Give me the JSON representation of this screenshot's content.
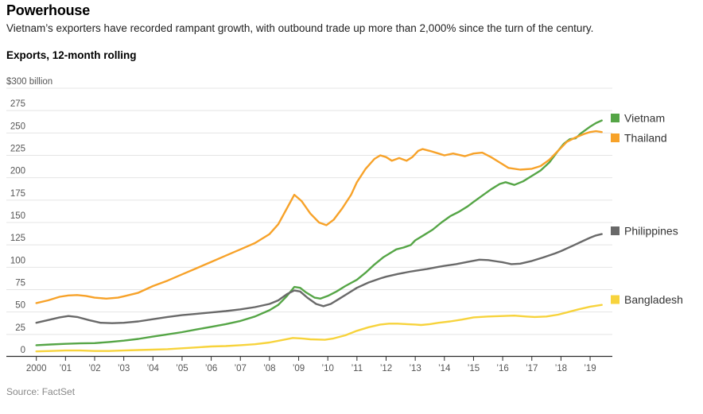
{
  "header": {
    "title": "Powerhouse",
    "subtitle": "Vietnam’s exporters have recorded rampant growth, with outbound trade up more than 2,000% since the turn of the century.",
    "chart_label": "Exports, 12-month rolling"
  },
  "source": "Source: FactSet",
  "chart_data": {
    "type": "line",
    "title": "Exports, 12-month rolling",
    "ylabel": "$300 billion",
    "ylim": [
      0,
      300
    ],
    "grid": true,
    "legend_position": "right",
    "y_ticks": [
      0,
      25,
      50,
      75,
      100,
      125,
      150,
      175,
      200,
      225,
      250,
      275,
      300
    ],
    "y_tick_labels": [
      "0",
      "25",
      "50",
      "75",
      "100",
      "125",
      "150",
      "175",
      "200",
      "225",
      "250",
      "275",
      "$300 billion"
    ],
    "x_ticks": [
      2000,
      2001,
      2002,
      2003,
      2004,
      2005,
      2006,
      2007,
      2008,
      2009,
      2010,
      2011,
      2012,
      2013,
      2014,
      2015,
      2016,
      2017,
      2018,
      2019
    ],
    "x_tick_labels": [
      "2000",
      "’01",
      "’02",
      "’03",
      "’04",
      "’05",
      "’06",
      "’07",
      "’08",
      "’09",
      "’10",
      "’11",
      "’12",
      "’13",
      "’14",
      "’15",
      "’16",
      "’17",
      "’18",
      "’19"
    ],
    "x_range": [
      2000,
      2019.75
    ],
    "series": [
      {
        "name": "Vietnam",
        "color": "#55A546",
        "points": [
          [
            2000,
            13
          ],
          [
            2000.5,
            13.8
          ],
          [
            2001,
            14.5
          ],
          [
            2001.5,
            15
          ],
          [
            2002,
            15.3
          ],
          [
            2002.5,
            16.5
          ],
          [
            2003,
            18
          ],
          [
            2003.5,
            20
          ],
          [
            2004,
            22.5
          ],
          [
            2004.5,
            25
          ],
          [
            2005,
            27.5
          ],
          [
            2005.5,
            30.5
          ],
          [
            2006,
            33.5
          ],
          [
            2006.5,
            36.5
          ],
          [
            2007,
            40
          ],
          [
            2007.5,
            45
          ],
          [
            2008,
            52
          ],
          [
            2008.3,
            58
          ],
          [
            2008.6,
            68
          ],
          [
            2008.85,
            78
          ],
          [
            2009.05,
            77
          ],
          [
            2009.25,
            72
          ],
          [
            2009.55,
            66
          ],
          [
            2009.75,
            65
          ],
          [
            2010,
            68
          ],
          [
            2010.3,
            73
          ],
          [
            2010.6,
            79
          ],
          [
            2011,
            86
          ],
          [
            2011.3,
            94
          ],
          [
            2011.6,
            103
          ],
          [
            2011.9,
            111
          ],
          [
            2012.1,
            115
          ],
          [
            2012.35,
            120
          ],
          [
            2012.6,
            122
          ],
          [
            2012.85,
            125
          ],
          [
            2013,
            130
          ],
          [
            2013.3,
            136
          ],
          [
            2013.6,
            142
          ],
          [
            2013.9,
            150
          ],
          [
            2014.2,
            157
          ],
          [
            2014.5,
            162
          ],
          [
            2014.8,
            168
          ],
          [
            2015,
            173
          ],
          [
            2015.3,
            180
          ],
          [
            2015.6,
            187
          ],
          [
            2015.9,
            193
          ],
          [
            2016.1,
            195
          ],
          [
            2016.4,
            192
          ],
          [
            2016.7,
            196
          ],
          [
            2017,
            202
          ],
          [
            2017.3,
            208
          ],
          [
            2017.6,
            217
          ],
          [
            2017.9,
            230
          ],
          [
            2018.1,
            238
          ],
          [
            2018.3,
            243
          ],
          [
            2018.5,
            244
          ],
          [
            2018.7,
            250
          ],
          [
            2019,
            257
          ],
          [
            2019.2,
            261
          ],
          [
            2019.4,
            264
          ]
        ]
      },
      {
        "name": "Thailand",
        "color": "#F7A229",
        "points": [
          [
            2000,
            60
          ],
          [
            2000.4,
            63
          ],
          [
            2000.8,
            67
          ],
          [
            2001.1,
            68.5
          ],
          [
            2001.4,
            69
          ],
          [
            2001.7,
            68
          ],
          [
            2002,
            66
          ],
          [
            2002.4,
            65
          ],
          [
            2002.8,
            66
          ],
          [
            2003,
            67.5
          ],
          [
            2003.5,
            71.5
          ],
          [
            2004,
            79
          ],
          [
            2004.5,
            85
          ],
          [
            2005,
            92
          ],
          [
            2005.5,
            99
          ],
          [
            2006,
            106
          ],
          [
            2006.5,
            113
          ],
          [
            2007,
            120
          ],
          [
            2007.5,
            127
          ],
          [
            2008,
            137
          ],
          [
            2008.3,
            148
          ],
          [
            2008.6,
            166
          ],
          [
            2008.85,
            181
          ],
          [
            2009.1,
            174
          ],
          [
            2009.4,
            160
          ],
          [
            2009.7,
            150
          ],
          [
            2009.95,
            147
          ],
          [
            2010.2,
            153
          ],
          [
            2010.5,
            166
          ],
          [
            2010.8,
            181
          ],
          [
            2011,
            195
          ],
          [
            2011.3,
            210
          ],
          [
            2011.6,
            221
          ],
          [
            2011.8,
            225
          ],
          [
            2012,
            223
          ],
          [
            2012.2,
            219
          ],
          [
            2012.45,
            222
          ],
          [
            2012.7,
            219
          ],
          [
            2012.9,
            223
          ],
          [
            2013.1,
            230
          ],
          [
            2013.25,
            232
          ],
          [
            2013.5,
            230
          ],
          [
            2013.8,
            227
          ],
          [
            2014,
            225
          ],
          [
            2014.3,
            227
          ],
          [
            2014.7,
            224
          ],
          [
            2015,
            227
          ],
          [
            2015.3,
            228
          ],
          [
            2015.6,
            223
          ],
          [
            2015.9,
            217
          ],
          [
            2016.2,
            211
          ],
          [
            2016.6,
            209
          ],
          [
            2017,
            210
          ],
          [
            2017.3,
            213
          ],
          [
            2017.6,
            220
          ],
          [
            2017.9,
            230
          ],
          [
            2018.2,
            240
          ],
          [
            2018.5,
            245
          ],
          [
            2018.8,
            249
          ],
          [
            2019,
            251
          ],
          [
            2019.2,
            252
          ],
          [
            2019.4,
            251
          ]
        ]
      },
      {
        "name": "Philippines",
        "color": "#696969",
        "points": [
          [
            2000,
            38
          ],
          [
            2000.4,
            41
          ],
          [
            2000.8,
            44
          ],
          [
            2001.1,
            45.5
          ],
          [
            2001.4,
            44.5
          ],
          [
            2001.8,
            41
          ],
          [
            2002.2,
            38
          ],
          [
            2002.6,
            37.5
          ],
          [
            2003,
            38
          ],
          [
            2003.5,
            39.5
          ],
          [
            2004,
            42
          ],
          [
            2004.5,
            44.5
          ],
          [
            2005,
            46.5
          ],
          [
            2005.5,
            48
          ],
          [
            2006,
            49.5
          ],
          [
            2006.5,
            51
          ],
          [
            2007,
            53
          ],
          [
            2007.5,
            55.5
          ],
          [
            2008,
            59
          ],
          [
            2008.3,
            63
          ],
          [
            2008.6,
            70
          ],
          [
            2008.85,
            74
          ],
          [
            2009.05,
            73
          ],
          [
            2009.3,
            66
          ],
          [
            2009.6,
            59
          ],
          [
            2009.85,
            56.5
          ],
          [
            2010.1,
            59
          ],
          [
            2010.4,
            65
          ],
          [
            2010.7,
            71
          ],
          [
            2011,
            77
          ],
          [
            2011.4,
            83
          ],
          [
            2011.8,
            87.5
          ],
          [
            2012,
            89.5
          ],
          [
            2012.4,
            92.5
          ],
          [
            2012.8,
            95
          ],
          [
            2013,
            96
          ],
          [
            2013.4,
            98
          ],
          [
            2013.8,
            100.5
          ],
          [
            2014,
            101.5
          ],
          [
            2014.4,
            103.5
          ],
          [
            2014.8,
            106
          ],
          [
            2015.2,
            108.5
          ],
          [
            2015.5,
            108
          ],
          [
            2015.8,
            106.5
          ],
          [
            2016,
            105.5
          ],
          [
            2016.3,
            103.5
          ],
          [
            2016.6,
            104
          ],
          [
            2017,
            107
          ],
          [
            2017.4,
            111
          ],
          [
            2017.8,
            115.5
          ],
          [
            2018,
            118
          ],
          [
            2018.4,
            124
          ],
          [
            2018.8,
            130
          ],
          [
            2019,
            133
          ],
          [
            2019.2,
            135.5
          ],
          [
            2019.4,
            137
          ]
        ]
      },
      {
        "name": "Bangladesh",
        "color": "#F7D33C",
        "points": [
          [
            2000,
            6
          ],
          [
            2000.5,
            6.5
          ],
          [
            2001,
            7
          ],
          [
            2001.5,
            7
          ],
          [
            2002,
            6.5
          ],
          [
            2002.5,
            6.5
          ],
          [
            2003,
            7
          ],
          [
            2003.5,
            7.5
          ],
          [
            2004,
            8
          ],
          [
            2004.5,
            8.5
          ],
          [
            2005,
            9.5
          ],
          [
            2005.5,
            10.5
          ],
          [
            2006,
            11.5
          ],
          [
            2006.5,
            12
          ],
          [
            2007,
            13
          ],
          [
            2007.5,
            14
          ],
          [
            2008,
            16
          ],
          [
            2008.4,
            18.5
          ],
          [
            2008.8,
            21
          ],
          [
            2009.1,
            20.5
          ],
          [
            2009.4,
            19.5
          ],
          [
            2009.9,
            19
          ],
          [
            2010.2,
            20.5
          ],
          [
            2010.6,
            24
          ],
          [
            2011,
            29
          ],
          [
            2011.4,
            33
          ],
          [
            2011.8,
            36
          ],
          [
            2012.1,
            37
          ],
          [
            2012.4,
            37
          ],
          [
            2012.7,
            36.5
          ],
          [
            2013,
            36
          ],
          [
            2013.2,
            35.5
          ],
          [
            2013.5,
            36.5
          ],
          [
            2013.8,
            38
          ],
          [
            2014.2,
            39.5
          ],
          [
            2014.6,
            41.5
          ],
          [
            2015,
            44
          ],
          [
            2015.5,
            45
          ],
          [
            2016,
            45.5
          ],
          [
            2016.4,
            46
          ],
          [
            2016.8,
            45
          ],
          [
            2017.1,
            44.5
          ],
          [
            2017.5,
            45
          ],
          [
            2017.9,
            47
          ],
          [
            2018.2,
            49.5
          ],
          [
            2018.6,
            53
          ],
          [
            2019,
            56
          ],
          [
            2019.2,
            57
          ],
          [
            2019.4,
            58
          ]
        ]
      }
    ],
    "legend": [
      {
        "label": "Vietnam",
        "color": "#55A546"
      },
      {
        "label": "Thailand",
        "color": "#F7A229"
      },
      {
        "label": "Philippines",
        "color": "#696969"
      },
      {
        "label": "Bangladesh",
        "color": "#F7D33C"
      }
    ]
  }
}
